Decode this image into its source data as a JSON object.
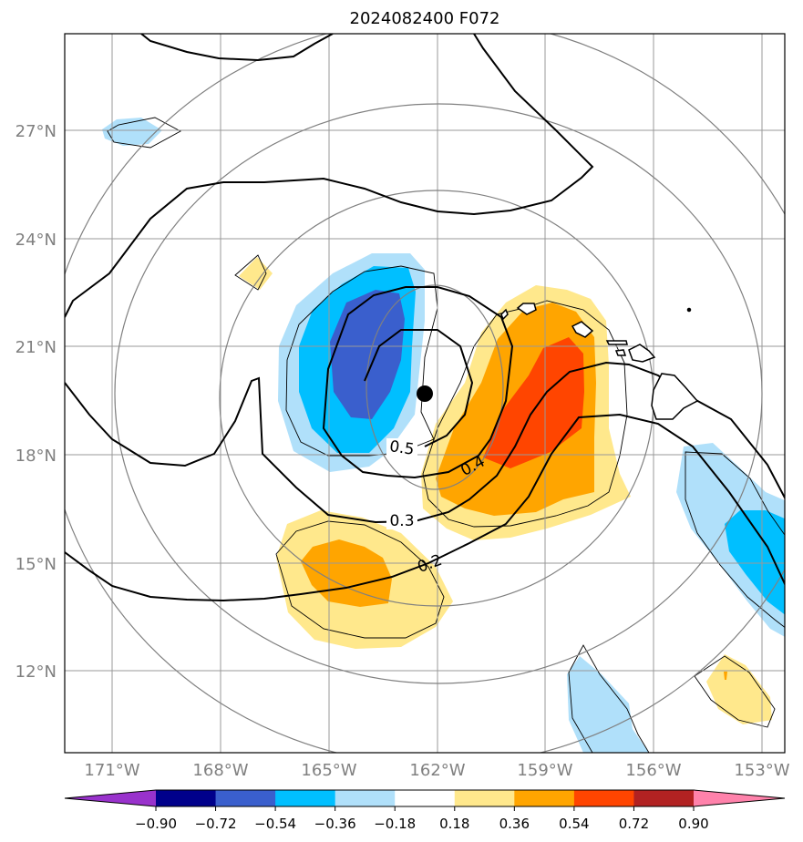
{
  "title": "2024082400 F072",
  "lat_labels": [
    "27°N",
    "24°N",
    "21°N",
    "18°N",
    "15°N",
    "12°N"
  ],
  "lon_labels": [
    "171°W",
    "168°W",
    "165°W",
    "162°W",
    "159°W",
    "156°W",
    "153°W"
  ],
  "contour_labels": [
    "0.5",
    "0.4",
    "0.3",
    "0.2"
  ],
  "colorbar": {
    "tick_labels": [
      "−0.90",
      "−0.72",
      "−0.54",
      "−0.36",
      "−0.18",
      "0.18",
      "0.36",
      "0.54",
      "0.72",
      "0.90"
    ],
    "colors": [
      "#9932cc",
      "#00008b",
      "#3a5fcd",
      "#00bfff",
      "#b0e0fa",
      "#ffffff",
      "#ffe88c",
      "#ffa500",
      "#ff4500",
      "#b22222",
      "#ff82ab"
    ]
  },
  "map": {
    "extent_lon": [
      -172.3,
      -152.6
    ],
    "extent_lat": [
      9.7,
      29.6
    ],
    "storm_center": {
      "lon": -162.35,
      "lat": 19.7
    },
    "colors": {
      "grid": "#999999",
      "range_rings": "#808080",
      "contours": "#000000",
      "coast": "#000000"
    }
  }
}
